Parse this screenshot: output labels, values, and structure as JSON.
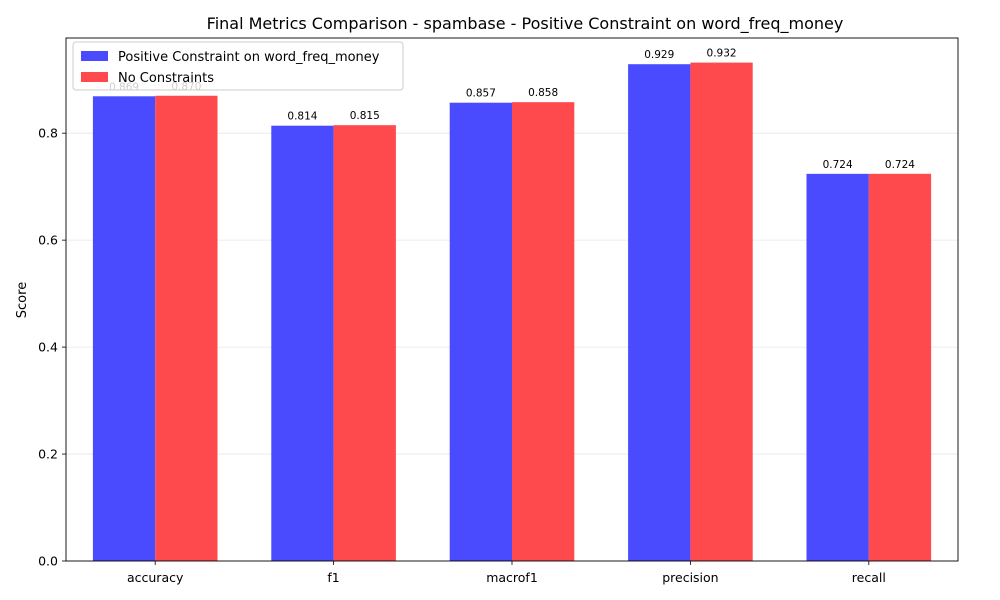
{
  "chart_data": {
    "type": "bar",
    "title": "Final Metrics Comparison - spambase - Positive Constraint on word_freq_money",
    "xlabel": "",
    "ylabel": "Score",
    "ylim": [
      0,
      0.978
    ],
    "yticks": [
      "0.0",
      "0.2",
      "0.4",
      "0.6",
      "0.8"
    ],
    "grid": "y",
    "legend_position": "top-left",
    "categories": [
      "accuracy",
      "f1",
      "macrof1",
      "precision",
      "recall"
    ],
    "series": [
      {
        "name": "Positive Constraint on word_freq_money",
        "color": "#4a4aff",
        "values": [
          0.869,
          0.814,
          0.857,
          0.929,
          0.724
        ],
        "labels": [
          "0.869",
          "0.814",
          "0.857",
          "0.929",
          "0.724"
        ]
      },
      {
        "name": "No Constraints",
        "color": "#ff4a4d",
        "values": [
          0.87,
          0.815,
          0.858,
          0.932,
          0.724
        ],
        "labels": [
          "0.870",
          "0.815",
          "0.858",
          "0.932",
          "0.724"
        ]
      }
    ]
  }
}
